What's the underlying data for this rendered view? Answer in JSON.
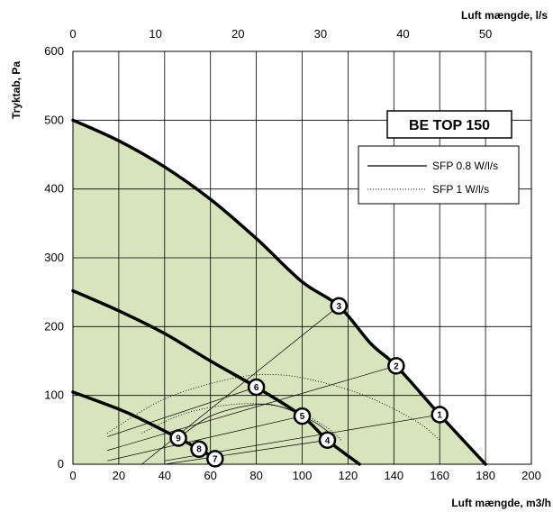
{
  "chart_data": {
    "type": "line",
    "title": "BE TOP 150",
    "xlabel": "Luft mængde, m3/h",
    "x2label": "Luft mængde, l/s",
    "ylabel": "Tryktab, Pa",
    "xlim": [
      0,
      200
    ],
    "x2lim": [
      0,
      55.56
    ],
    "ylim": [
      0,
      600
    ],
    "x_ticks": [
      "0",
      "20",
      "40",
      "60",
      "80",
      "100",
      "120",
      "140",
      "160",
      "180",
      "200"
    ],
    "x2_ticks": [
      "0",
      "10",
      "20",
      "30",
      "40",
      "50"
    ],
    "y_ticks": [
      "0",
      "100",
      "200",
      "300",
      "400",
      "500",
      "600"
    ],
    "grid": true,
    "fill_color": "#d8e4bc",
    "legend_position": "top-right",
    "legend": [
      {
        "label": "SFP 0.8 W/l/s",
        "style": "solid"
      },
      {
        "label": "SFP 1 W/l/s",
        "style": "dotted"
      }
    ],
    "fan_curves": [
      {
        "id": "high",
        "points": [
          [
            0,
            500
          ],
          [
            20,
            470
          ],
          [
            40,
            432
          ],
          [
            60,
            385
          ],
          [
            80,
            328
          ],
          [
            100,
            265
          ],
          [
            116,
            230
          ],
          [
            130,
            175
          ],
          [
            141,
            143
          ],
          [
            160,
            72
          ],
          [
            180,
            0
          ]
        ]
      },
      {
        "id": "mid",
        "points": [
          [
            0,
            252
          ],
          [
            20,
            223
          ],
          [
            40,
            190
          ],
          [
            60,
            150
          ],
          [
            80,
            112
          ],
          [
            100,
            70
          ],
          [
            111,
            35
          ],
          [
            125,
            0
          ]
        ]
      },
      {
        "id": "low",
        "points": [
          [
            0,
            105
          ],
          [
            20,
            80
          ],
          [
            30,
            65
          ],
          [
            46,
            38
          ],
          [
            55,
            22
          ],
          [
            62,
            8
          ],
          [
            64,
            0
          ]
        ]
      }
    ],
    "system_lines": [
      {
        "style": "solid",
        "points": [
          [
            30,
            0
          ],
          [
            116,
            230
          ]
        ]
      },
      {
        "style": "solid",
        "points": [
          [
            15,
            20
          ],
          [
            141,
            143
          ]
        ]
      },
      {
        "style": "solid",
        "points": [
          [
            40,
            5
          ],
          [
            160,
            72
          ]
        ]
      },
      {
        "style": "solid",
        "points": [
          [
            15,
            40
          ],
          [
            80,
            112
          ]
        ]
      },
      {
        "style": "solid",
        "points": [
          [
            15,
            5
          ],
          [
            100,
            70
          ]
        ]
      },
      {
        "style": "solid",
        "points": [
          [
            40,
            0
          ],
          [
            111,
            35
          ]
        ]
      }
    ],
    "sfp_curves": [
      {
        "name": "SFP 0.8 W/l/s",
        "style": "solid",
        "points": [
          [
            46,
            38
          ],
          [
            60,
            70
          ],
          [
            78,
            86
          ],
          [
            90,
            84
          ],
          [
            105,
            62
          ],
          [
            114,
            40
          ]
        ]
      },
      {
        "name": "SFP 1 W/l/s",
        "style": "dotted",
        "points": [
          [
            15,
            45
          ],
          [
            40,
            95
          ],
          [
            70,
            125
          ],
          [
            90,
            130
          ],
          [
            110,
            118
          ],
          [
            130,
            96
          ],
          [
            150,
            62
          ],
          [
            160,
            35
          ]
        ]
      },
      {
        "name": "SFP 1 W/l/s",
        "style": "dotted",
        "points": [
          [
            30,
            45
          ],
          [
            50,
            75
          ],
          [
            75,
            88
          ],
          [
            95,
            80
          ],
          [
            110,
            55
          ],
          [
            117,
            35
          ]
        ]
      }
    ],
    "operating_points": [
      {
        "label": "1",
        "x": 160,
        "y": 72
      },
      {
        "label": "2",
        "x": 141,
        "y": 143
      },
      {
        "label": "3",
        "x": 116,
        "y": 230
      },
      {
        "label": "4",
        "x": 111,
        "y": 35
      },
      {
        "label": "5",
        "x": 100,
        "y": 70
      },
      {
        "label": "6",
        "x": 80,
        "y": 112
      },
      {
        "label": "7",
        "x": 62,
        "y": 8
      },
      {
        "label": "8",
        "x": 55,
        "y": 22
      },
      {
        "label": "9",
        "x": 46,
        "y": 38
      }
    ]
  }
}
